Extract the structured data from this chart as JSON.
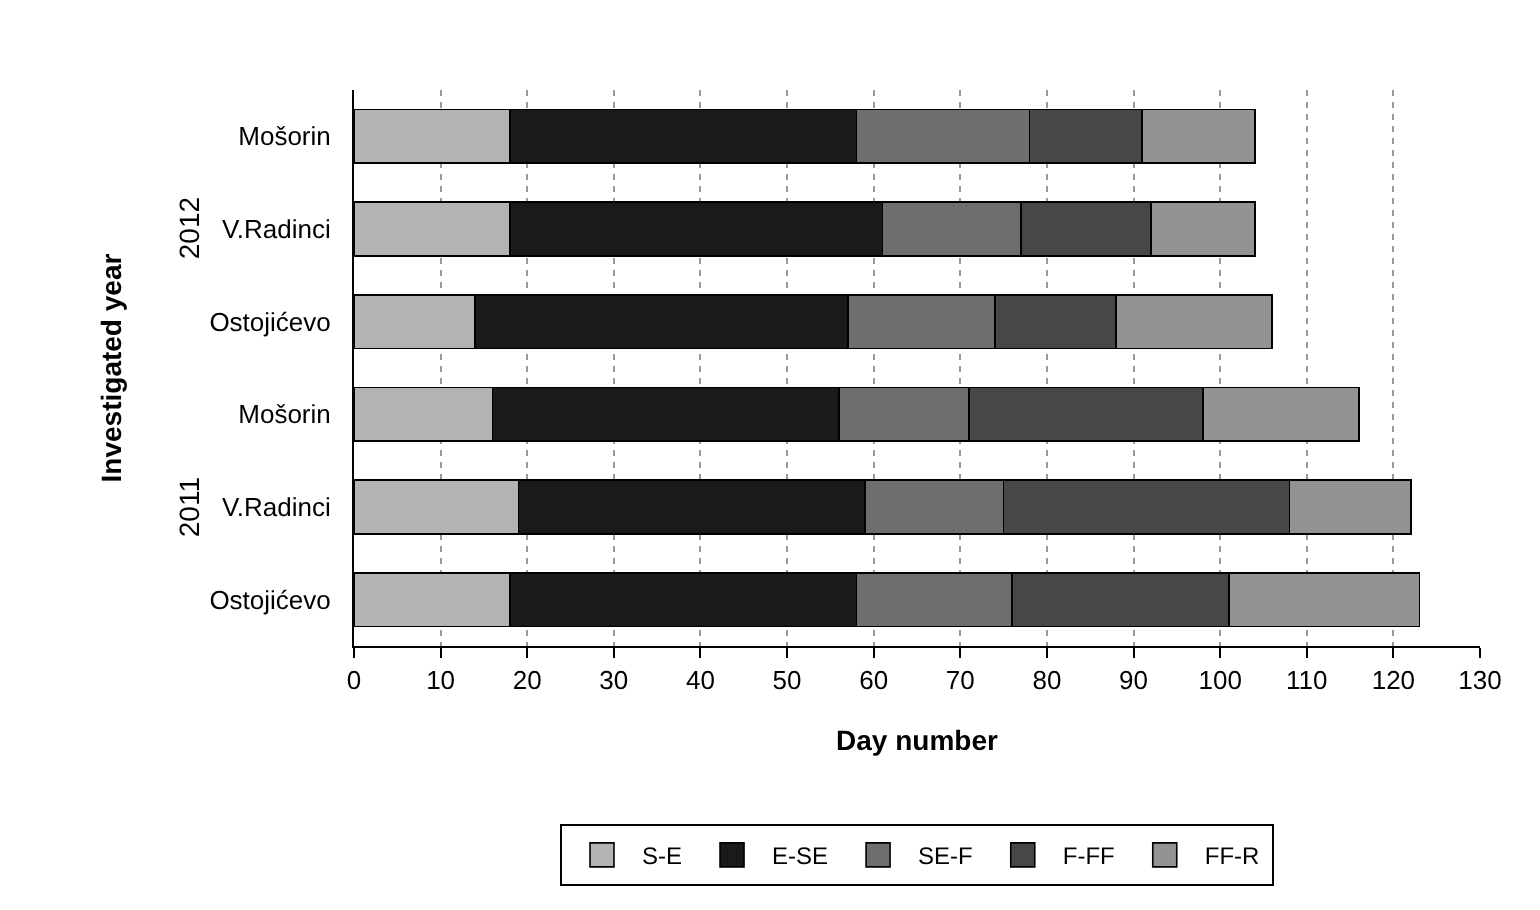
{
  "chart_data": {
    "type": "bar",
    "orientation": "horizontal",
    "stacked": true,
    "xlabel": "Day number",
    "ylabel": "Investigated year",
    "categories": [
      "Mošorin",
      "V.Radinci",
      "Ostojićevo",
      "Mošorin",
      "V.Radinci",
      "Ostojićevo"
    ],
    "annotations": [
      "2012",
      "2011"
    ],
    "series": [
      {
        "name": "S-E",
        "color": "#b3b3b3",
        "values": [
          18,
          18,
          14,
          16,
          19,
          18
        ]
      },
      {
        "name": "E-SE",
        "color": "#1a1a1a",
        "values": [
          40,
          43,
          43,
          40,
          40,
          40
        ]
      },
      {
        "name": "SE-F",
        "color": "#6e6e6e",
        "values": [
          20,
          16,
          17,
          15,
          16,
          18
        ]
      },
      {
        "name": "F-FF",
        "color": "#474747",
        "values": [
          13,
          15,
          14,
          27,
          33,
          25
        ]
      },
      {
        "name": "FF-R",
        "color": "#939393",
        "values": [
          13,
          12,
          18,
          18,
          14,
          22
        ]
      }
    ],
    "xlim": [
      0,
      130
    ],
    "xticks": [
      0,
      10,
      20,
      30,
      40,
      50,
      60,
      70,
      80,
      90,
      100,
      110,
      120,
      130
    ],
    "grid": "x",
    "legend": "bottom"
  }
}
